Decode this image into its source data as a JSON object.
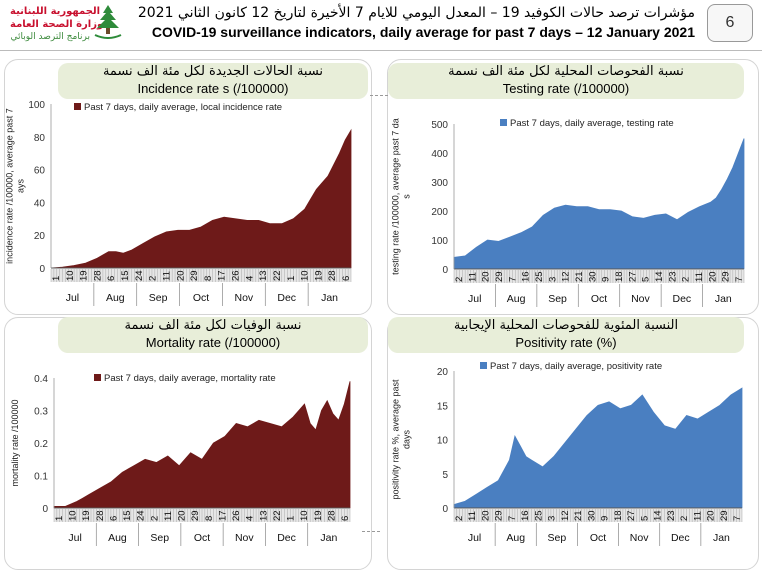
{
  "header": {
    "logo_line1": "الجمهورية اللبنانية",
    "logo_line2": "وزارة الصحة العامة",
    "logo_line3": "برنامج الترصد الوبائي",
    "title_ar": "مؤشرات ترصد حالات الكوفيد 19 – المعدل اليومي للايام 7 الأخيرة لتاريخ 12 كانون الثاني 2021",
    "title_en": "COVID-19 surveillance indicators, daily average for past 7 days – 12 January 2021",
    "page_number": "6"
  },
  "colors": {
    "dark_red": "#6e1a19",
    "blue": "#4a7fc1",
    "title_bg": "#e8eed9"
  },
  "chart_data": [
    {
      "type": "area",
      "title_ar": "نسبة الحالات الجديدة لكل مئة الف نسمة",
      "title_en": "Incidence rate s  (/100000)",
      "ylabel": "incidence rate /100000, average past 7 days",
      "legend": "Past 7 days, daily average, local incidence rate",
      "color": "#6e1a19",
      "ylim": [
        0,
        100
      ],
      "yticks": [
        "0",
        "20",
        "40",
        "60",
        "80",
        "100"
      ],
      "day_labels": [
        "1",
        "10",
        "19",
        "28",
        "6",
        "15",
        "24",
        "2",
        "11",
        "20",
        "29",
        "8",
        "17",
        "26",
        "4",
        "13",
        "22",
        "1",
        "10",
        "19",
        "28",
        "6"
      ],
      "month_labels": [
        "Jul",
        "Aug",
        "Sep",
        "Oct",
        "Nov",
        "Dec",
        "Jan"
      ],
      "x_days": [
        0,
        8,
        16,
        24,
        32,
        40,
        45,
        50,
        56,
        64,
        72,
        80,
        88,
        96,
        104,
        112,
        120,
        128,
        136,
        144,
        152,
        160,
        168,
        176,
        180,
        184,
        188,
        192,
        196,
        200,
        204,
        208
      ],
      "values": [
        0,
        0.5,
        1.5,
        3,
        6,
        10,
        10,
        9,
        11,
        15,
        19,
        22,
        23,
        23,
        25,
        29,
        31,
        30,
        29,
        29,
        27,
        27,
        30,
        36,
        42,
        48,
        52,
        56,
        63,
        70,
        78,
        84
      ]
    },
    {
      "type": "area",
      "title_ar": "نسبة الفحوصات المحلية لكل مئة الف نسمة",
      "title_en": "Testing rate (/100000)",
      "ylabel": "testing rate /100000, average past 7 days",
      "legend": "Past 7 days, daily average, testing rate",
      "color": "#4a7fc1",
      "ylim": [
        0,
        500
      ],
      "yticks": [
        "0",
        "100",
        "200",
        "300",
        "400",
        "500"
      ],
      "day_labels": [
        "2",
        "11",
        "20",
        "29",
        "7",
        "16",
        "25",
        "3",
        "12",
        "21",
        "30",
        "9",
        "18",
        "27",
        "5",
        "14",
        "23",
        "2",
        "11",
        "20",
        "29",
        "7"
      ],
      "month_labels": [
        "Jul",
        "Aug",
        "Sep",
        "Oct",
        "Nov",
        "Dec",
        "Jan"
      ],
      "x_days": [
        0,
        8,
        16,
        24,
        32,
        40,
        48,
        56,
        64,
        72,
        80,
        88,
        96,
        104,
        112,
        120,
        128,
        136,
        144,
        152,
        160,
        168,
        176,
        184,
        188,
        192,
        196,
        200,
        204,
        208
      ],
      "values": [
        40,
        45,
        75,
        100,
        95,
        110,
        125,
        145,
        185,
        210,
        220,
        215,
        215,
        205,
        205,
        200,
        180,
        175,
        185,
        190,
        170,
        195,
        215,
        230,
        245,
        275,
        310,
        350,
        400,
        450
      ]
    },
    {
      "type": "area",
      "title_ar": "نسبة الوفيات لكل مئة الف نسمة",
      "title_en": "Mortality rate (/100000)",
      "ylabel": "mortality rate /100000",
      "legend": "Past 7 days, daily average, mortality rate",
      "color": "#6e1a19",
      "ylim": [
        0,
        0.4
      ],
      "yticks": [
        "0",
        "0.1",
        "0.2",
        "0.3",
        "0.4"
      ],
      "day_labels": [
        "1",
        "10",
        "19",
        "28",
        "6",
        "15",
        "24",
        "2",
        "11",
        "20",
        "29",
        "8",
        "17",
        "26",
        "4",
        "13",
        "22",
        "1",
        "10",
        "19",
        "28",
        "6"
      ],
      "month_labels": [
        "Jul",
        "Aug",
        "Sep",
        "Oct",
        "Nov",
        "Dec",
        "Jan"
      ],
      "x_days": [
        0,
        8,
        16,
        20,
        24,
        32,
        40,
        48,
        56,
        64,
        72,
        80,
        88,
        96,
        104,
        112,
        120,
        128,
        136,
        144,
        152,
        160,
        168,
        176,
        180,
        184,
        188,
        192,
        196,
        200,
        204,
        208
      ],
      "values": [
        0.005,
        0.005,
        0.02,
        0.03,
        0.04,
        0.06,
        0.08,
        0.11,
        0.13,
        0.15,
        0.14,
        0.16,
        0.13,
        0.17,
        0.15,
        0.2,
        0.22,
        0.26,
        0.25,
        0.27,
        0.26,
        0.25,
        0.28,
        0.32,
        0.26,
        0.24,
        0.3,
        0.33,
        0.29,
        0.27,
        0.32,
        0.39
      ]
    },
    {
      "type": "area",
      "title_ar": "النسبة المئوية للفحوصات المحلية الإيجابية",
      "title_en": "Positivity rate (%)",
      "ylabel": "positivity rate %, average past 7 days",
      "legend": "Past 7 days, daily average, positivity rate",
      "color": "#4a7fc1",
      "ylim": [
        0,
        20
      ],
      "yticks": [
        "0",
        "5",
        "10",
        "15",
        "20"
      ],
      "day_labels": [
        "2",
        "11",
        "20",
        "29",
        "7",
        "16",
        "25",
        "3",
        "12",
        "21",
        "30",
        "9",
        "18",
        "27",
        "5",
        "14",
        "23",
        "2",
        "11",
        "20",
        "29",
        "7"
      ],
      "month_labels": [
        "Jul",
        "Aug",
        "Sep",
        "Oct",
        "Nov",
        "Dec",
        "Jan"
      ],
      "x_days": [
        0,
        8,
        16,
        24,
        32,
        40,
        44,
        48,
        52,
        56,
        64,
        72,
        80,
        88,
        96,
        104,
        112,
        120,
        128,
        136,
        144,
        152,
        160,
        168,
        176,
        184,
        192,
        200,
        208
      ],
      "values": [
        0.5,
        1,
        2,
        3,
        4,
        7,
        10.5,
        9,
        7.5,
        7,
        6,
        7.5,
        9.5,
        11.5,
        13.5,
        15,
        15.5,
        14.5,
        15,
        16.5,
        14,
        12,
        11.5,
        13.5,
        13,
        14,
        15,
        16.5,
        17.5
      ]
    }
  ]
}
